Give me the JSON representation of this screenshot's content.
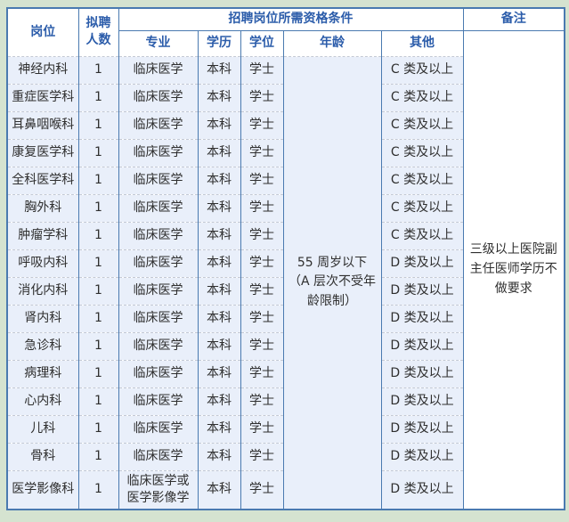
{
  "colors": {
    "border_blue": "#4a7ab0",
    "header_text_blue": "#2b5caa",
    "row_bg_light_blue": "#e9effa",
    "page_margin_green": "#d5e3d0",
    "dashed_separator": "#c4c9d4"
  },
  "header": {
    "col_position": "岗位",
    "col_headcount": "拟聘人数",
    "col_qualifications": "招聘岗位所需资格条件",
    "col_remarks": "备注",
    "sub": [
      "专业",
      "学历",
      "学位",
      "年龄",
      "其他"
    ]
  },
  "age_note": "55 周岁以下（A 层次不受年龄限制）",
  "remarks_note": "三级以上医院副主任医师学历不做要求",
  "rows": [
    {
      "position": "神经内科",
      "count": "1",
      "major": "临床医学",
      "education": "本科",
      "degree": "学士",
      "other": "C 类及以上"
    },
    {
      "position": "重症医学科",
      "count": "1",
      "major": "临床医学",
      "education": "本科",
      "degree": "学士",
      "other": "C 类及以上"
    },
    {
      "position": "耳鼻咽喉科",
      "count": "1",
      "major": "临床医学",
      "education": "本科",
      "degree": "学士",
      "other": "C 类及以上"
    },
    {
      "position": "康复医学科",
      "count": "1",
      "major": "临床医学",
      "education": "本科",
      "degree": "学士",
      "other": "C 类及以上"
    },
    {
      "position": "全科医学科",
      "count": "1",
      "major": "临床医学",
      "education": "本科",
      "degree": "学士",
      "other": "C 类及以上"
    },
    {
      "position": "胸外科",
      "count": "1",
      "major": "临床医学",
      "education": "本科",
      "degree": "学士",
      "other": "C 类及以上"
    },
    {
      "position": "肿瘤学科",
      "count": "1",
      "major": "临床医学",
      "education": "本科",
      "degree": "学士",
      "other": "C 类及以上"
    },
    {
      "position": "呼吸内科",
      "count": "1",
      "major": "临床医学",
      "education": "本科",
      "degree": "学士",
      "other": "D 类及以上"
    },
    {
      "position": "消化内科",
      "count": "1",
      "major": "临床医学",
      "education": "本科",
      "degree": "学士",
      "other": "D 类及以上"
    },
    {
      "position": "肾内科",
      "count": "1",
      "major": "临床医学",
      "education": "本科",
      "degree": "学士",
      "other": "D 类及以上"
    },
    {
      "position": "急诊科",
      "count": "1",
      "major": "临床医学",
      "education": "本科",
      "degree": "学士",
      "other": "D 类及以上"
    },
    {
      "position": "病理科",
      "count": "1",
      "major": "临床医学",
      "education": "本科",
      "degree": "学士",
      "other": "D 类及以上"
    },
    {
      "position": "心内科",
      "count": "1",
      "major": "临床医学",
      "education": "本科",
      "degree": "学士",
      "other": "D 类及以上"
    },
    {
      "position": "儿科",
      "count": "1",
      "major": "临床医学",
      "education": "本科",
      "degree": "学士",
      "other": "D 类及以上"
    },
    {
      "position": "骨科",
      "count": "1",
      "major": "临床医学",
      "education": "本科",
      "degree": "学士",
      "other": "D 类及以上"
    },
    {
      "position": "医学影像科",
      "count": "1",
      "major": "临床医学或医学影像学",
      "education": "本科",
      "degree": "学士",
      "other": "D 类及以上"
    }
  ]
}
